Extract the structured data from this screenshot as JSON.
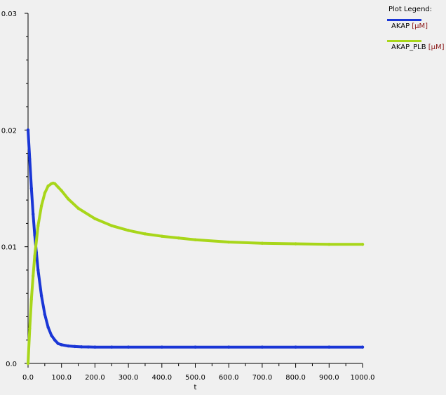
{
  "chart_data": {
    "type": "line",
    "xlabel": "t",
    "ylabel": "",
    "xlim": [
      0,
      1000
    ],
    "ylim": [
      0,
      0.03
    ],
    "x_ticks": [
      "0.0",
      "100.0",
      "200.0",
      "300.0",
      "400.0",
      "500.0",
      "600.0",
      "700.0",
      "800.0",
      "900.0",
      "1000.0"
    ],
    "y_ticks": [
      "0.0",
      "0.01",
      "0.02",
      "0.03"
    ],
    "grid": false,
    "legend_position": "top-right",
    "series": [
      {
        "name": "AKAP",
        "unit": "[µM]",
        "color": "#1a36d6",
        "x": [
          0,
          5,
          10,
          15,
          20,
          25,
          30,
          40,
          50,
          60,
          70,
          80,
          90,
          100,
          120,
          140,
          160,
          180,
          200,
          250,
          300,
          400,
          500,
          600,
          700,
          800,
          900,
          1000
        ],
        "y": [
          0.02,
          0.0175,
          0.015,
          0.0128,
          0.011,
          0.0095,
          0.008,
          0.0058,
          0.0042,
          0.0031,
          0.0024,
          0.002,
          0.0017,
          0.0016,
          0.0015,
          0.00145,
          0.00142,
          0.00141,
          0.0014,
          0.0014,
          0.0014,
          0.0014,
          0.0014,
          0.0014,
          0.0014,
          0.0014,
          0.0014,
          0.0014
        ]
      },
      {
        "name": "AKAP_PLB",
        "unit": "[µM]",
        "color": "#a8d61a",
        "x": [
          0,
          5,
          10,
          15,
          20,
          30,
          40,
          50,
          60,
          70,
          75,
          80,
          90,
          100,
          120,
          150,
          200,
          250,
          300,
          350,
          400,
          450,
          500,
          600,
          700,
          800,
          900,
          1000
        ],
        "y": [
          0.0,
          0.003,
          0.0055,
          0.0075,
          0.0092,
          0.0118,
          0.0135,
          0.0146,
          0.0152,
          0.0154,
          0.01545,
          0.0154,
          0.0151,
          0.0148,
          0.0141,
          0.0133,
          0.0124,
          0.0118,
          0.0114,
          0.0111,
          0.0109,
          0.01075,
          0.0106,
          0.0104,
          0.0103,
          0.01025,
          0.0102,
          0.0102
        ]
      }
    ]
  },
  "legend": {
    "title": "Plot Legend:"
  }
}
